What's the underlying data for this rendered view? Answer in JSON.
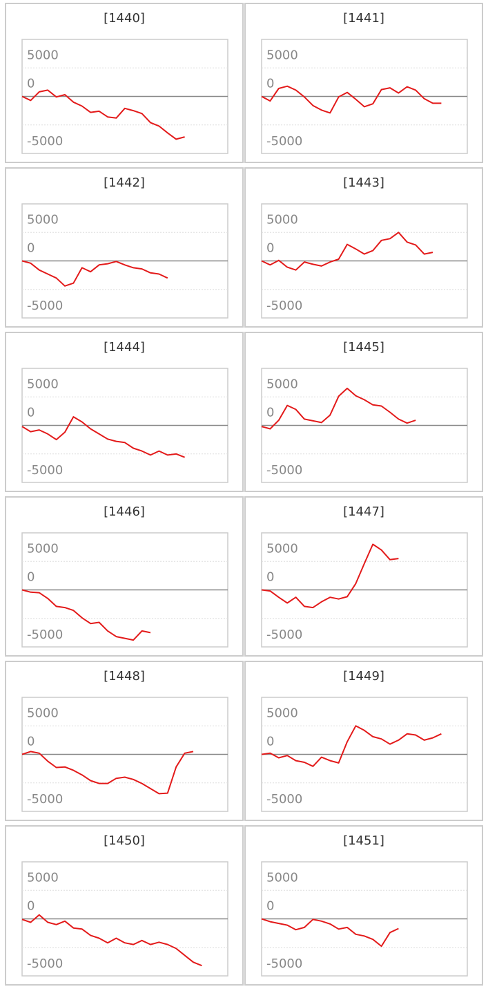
{
  "chart_data": [
    {
      "type": "line",
      "title": "[1440]",
      "color": "#e31a1a",
      "ylim": [
        -10000,
        10000
      ],
      "yticks": [
        5000,
        0,
        -5000
      ],
      "grid": true,
      "values": [
        0,
        -700,
        800,
        1100,
        -100,
        300,
        -1000,
        -1700,
        -2800,
        -2600,
        -3600,
        -3800,
        -2100,
        -2500,
        -3000,
        -4600,
        -5200,
        -6400,
        -7500,
        -7100
      ]
    },
    {
      "type": "line",
      "title": "[1441]",
      "color": "#e31a1a",
      "ylim": [
        -10000,
        10000
      ],
      "yticks": [
        5000,
        0,
        -5000
      ],
      "grid": true,
      "values": [
        0,
        -800,
        1400,
        1800,
        1100,
        -100,
        -1600,
        -2400,
        -2900,
        -100,
        700,
        -500,
        -1800,
        -1300,
        1200,
        1500,
        600,
        1700,
        1100,
        -400,
        -1200,
        -1200
      ]
    },
    {
      "type": "line",
      "title": "[1442]",
      "color": "#e31a1a",
      "ylim": [
        -10000,
        10000
      ],
      "yticks": [
        5000,
        0,
        -5000
      ],
      "grid": true,
      "values": [
        0,
        -400,
        -1600,
        -2300,
        -3000,
        -4400,
        -3900,
        -1200,
        -1900,
        -700,
        -500,
        -100,
        -700,
        -1200,
        -1400,
        -2100,
        -2300,
        -3000
      ]
    },
    {
      "type": "line",
      "title": "[1443]",
      "color": "#e31a1a",
      "ylim": [
        -10000,
        10000
      ],
      "yticks": [
        5000,
        0,
        -5000
      ],
      "grid": true,
      "values": [
        0,
        -700,
        100,
        -1100,
        -1600,
        -200,
        -600,
        -900,
        -200,
        300,
        2900,
        2100,
        1200,
        1800,
        3600,
        3900,
        5000,
        3300,
        2800,
        1200,
        1500
      ]
    },
    {
      "type": "line",
      "title": "[1444]",
      "color": "#e31a1a",
      "ylim": [
        -10000,
        10000
      ],
      "yticks": [
        5000,
        0,
        -5000
      ],
      "grid": true,
      "values": [
        -200,
        -1100,
        -800,
        -1500,
        -2500,
        -1200,
        1500,
        600,
        -600,
        -1500,
        -2400,
        -2800,
        -3000,
        -4000,
        -4500,
        -5200,
        -4500,
        -5200,
        -5000,
        -5600
      ]
    },
    {
      "type": "line",
      "title": "[1445]",
      "color": "#e31a1a",
      "ylim": [
        -10000,
        10000
      ],
      "yticks": [
        5000,
        0,
        -5000
      ],
      "grid": true,
      "values": [
        -200,
        -600,
        900,
        3500,
        2800,
        1100,
        800,
        500,
        1800,
        5100,
        6500,
        5200,
        4500,
        3600,
        3400,
        2300,
        1100,
        400,
        900
      ]
    },
    {
      "type": "line",
      "title": "[1446]",
      "color": "#e31a1a",
      "ylim": [
        -10000,
        10000
      ],
      "yticks": [
        5000,
        0,
        -5000
      ],
      "grid": true,
      "values": [
        0,
        -400,
        -500,
        -1500,
        -2900,
        -3100,
        -3600,
        -4900,
        -5900,
        -5700,
        -7200,
        -8200,
        -8500,
        -8800,
        -7200,
        -7500
      ]
    },
    {
      "type": "line",
      "title": "[1447]",
      "color": "#e31a1a",
      "ylim": [
        -10000,
        10000
      ],
      "yticks": [
        5000,
        0,
        -5000
      ],
      "grid": true,
      "values": [
        0,
        -200,
        -1300,
        -2300,
        -1300,
        -2900,
        -3100,
        -2100,
        -1300,
        -1600,
        -1200,
        1100,
        4600,
        8000,
        7000,
        5300,
        5500
      ]
    },
    {
      "type": "line",
      "title": "[1448]",
      "color": "#e31a1a",
      "ylim": [
        -10000,
        10000
      ],
      "yticks": [
        5000,
        0,
        -5000
      ],
      "grid": true,
      "values": [
        0,
        500,
        200,
        -1200,
        -2300,
        -2200,
        -2800,
        -3600,
        -4600,
        -5100,
        -5100,
        -4200,
        -4000,
        -4400,
        -5100,
        -6000,
        -6900,
        -6800,
        -2200,
        200,
        500
      ]
    },
    {
      "type": "line",
      "title": "[1449]",
      "color": "#e31a1a",
      "ylim": [
        -10000,
        10000
      ],
      "yticks": [
        5000,
        0,
        -5000
      ],
      "grid": true,
      "values": [
        0,
        200,
        -600,
        -200,
        -1100,
        -1400,
        -2100,
        -500,
        -1100,
        -1500,
        2200,
        5000,
        4200,
        3100,
        2700,
        1800,
        2500,
        3600,
        3400,
        2500,
        2900,
        3600
      ]
    },
    {
      "type": "line",
      "title": "[1450]",
      "color": "#e31a1a",
      "ylim": [
        -10000,
        10000
      ],
      "yticks": [
        5000,
        0,
        -5000
      ],
      "grid": true,
      "values": [
        -100,
        -600,
        700,
        -600,
        -1000,
        -400,
        -1600,
        -1800,
        -2900,
        -3400,
        -4200,
        -3400,
        -4200,
        -4500,
        -3800,
        -4500,
        -4100,
        -4500,
        -5200,
        -6400,
        -7600,
        -8200
      ]
    },
    {
      "type": "line",
      "title": "[1451]",
      "color": "#e31a1a",
      "ylim": [
        -10000,
        10000
      ],
      "yticks": [
        5000,
        0,
        -5000
      ],
      "grid": true,
      "values": [
        0,
        -500,
        -800,
        -1100,
        -1900,
        -1500,
        -100,
        -400,
        -900,
        -1800,
        -1500,
        -2700,
        -3000,
        -3600,
        -4800,
        -2400,
        -1700
      ]
    }
  ]
}
